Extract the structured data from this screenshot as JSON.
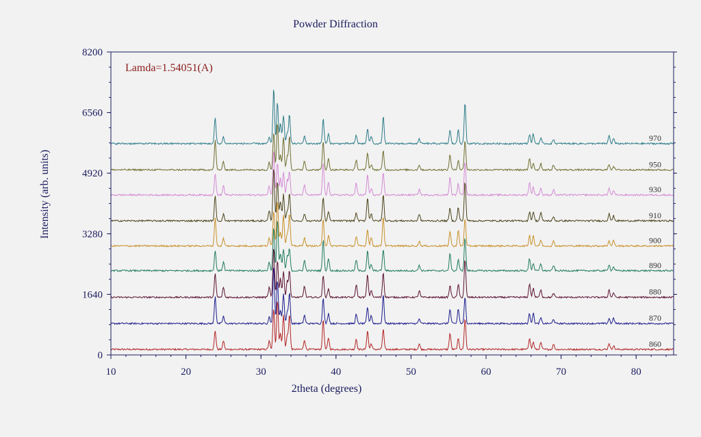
{
  "chart_data": {
    "type": "line",
    "title": "Powder Diffraction",
    "xlabel": "2theta (degrees)",
    "ylabel": "Intensity (arb. units)",
    "annotation": "Lamda=1.54051(A)",
    "xlim": [
      10,
      85
    ],
    "ylim": [
      0,
      8200
    ],
    "x_ticks": [
      "10",
      "20",
      "30",
      "40",
      "50",
      "60",
      "70",
      "80"
    ],
    "y_ticks": [
      "0",
      "1640",
      "3280",
      "4920",
      "6560",
      "8200"
    ],
    "grid": false,
    "legend": "none",
    "peaks": [
      {
        "x": 23.9,
        "h": 0.5
      },
      {
        "x": 25.0,
        "h": 0.18
      },
      {
        "x": 31.1,
        "h": 0.18
      },
      {
        "x": 31.7,
        "h": 1.0
      },
      {
        "x": 32.2,
        "h": 0.88
      },
      {
        "x": 32.6,
        "h": 0.35
      },
      {
        "x": 33.0,
        "h": 0.6
      },
      {
        "x": 33.5,
        "h": 0.28
      },
      {
        "x": 33.8,
        "h": 0.6
      },
      {
        "x": 35.8,
        "h": 0.2
      },
      {
        "x": 38.3,
        "h": 0.55
      },
      {
        "x": 39.0,
        "h": 0.22
      },
      {
        "x": 42.7,
        "h": 0.22
      },
      {
        "x": 44.2,
        "h": 0.4
      },
      {
        "x": 44.7,
        "h": 0.15
      },
      {
        "x": 46.3,
        "h": 0.5
      },
      {
        "x": 51.1,
        "h": 0.12
      },
      {
        "x": 55.2,
        "h": 0.3
      },
      {
        "x": 56.3,
        "h": 0.26
      },
      {
        "x": 57.2,
        "h": 0.7
      },
      {
        "x": 65.8,
        "h": 0.24
      },
      {
        "x": 66.3,
        "h": 0.18
      },
      {
        "x": 67.3,
        "h": 0.14
      },
      {
        "x": 69.0,
        "h": 0.1
      },
      {
        "x": 76.4,
        "h": 0.14
      },
      {
        "x": 77.0,
        "h": 0.1
      }
    ],
    "series": [
      {
        "name": "860",
        "baseline": 150,
        "peak_scale": 1300,
        "color": "#b22222"
      },
      {
        "name": "870",
        "baseline": 850,
        "peak_scale": 1300,
        "color": "#1a1a8c"
      },
      {
        "name": "880",
        "baseline": 1560,
        "peak_scale": 1300,
        "color": "#5a1030"
      },
      {
        "name": "890",
        "baseline": 2280,
        "peak_scale": 1300,
        "color": "#1f7a5c"
      },
      {
        "name": "900",
        "baseline": 2950,
        "peak_scale": 1300,
        "color": "#c8902a"
      },
      {
        "name": "910",
        "baseline": 3630,
        "peak_scale": 1300,
        "color": "#4a4218"
      },
      {
        "name": "930",
        "baseline": 4330,
        "peak_scale": 1300,
        "color": "#d48ad4"
      },
      {
        "name": "950",
        "baseline": 5010,
        "peak_scale": 1300,
        "color": "#6e6e30"
      },
      {
        "name": "970",
        "baseline": 5720,
        "peak_scale": 1300,
        "color": "#2a7a86"
      }
    ]
  }
}
